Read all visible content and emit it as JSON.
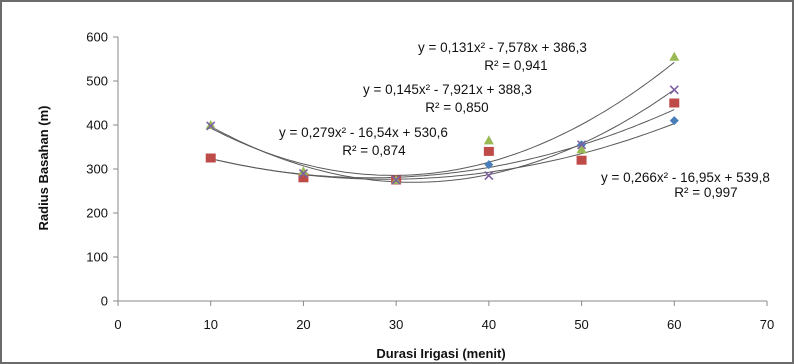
{
  "chart_data": {
    "type": "scatter",
    "title": "",
    "xlabel": "Durasi Irigasi (menit)",
    "ylabel": "Radius Basahan (m)",
    "xlim": [
      0,
      70
    ],
    "ylim": [
      0,
      600
    ],
    "x_ticks": [
      "0",
      "10",
      "20",
      "30",
      "40",
      "50",
      "60",
      "70"
    ],
    "y_ticks": [
      "0",
      "100",
      "200",
      "300",
      "400",
      "500",
      "600"
    ],
    "grid": false,
    "legend": "none",
    "series": [
      {
        "marker": "diamond",
        "color": "#4a7ebb",
        "x": [
          10,
          20,
          30,
          40,
          50,
          60
        ],
        "y": [
          325,
          290,
          275,
          310,
          355,
          410
        ],
        "trend": [
          0.266,
          -16.95,
          539.8
        ],
        "equation": "y = 0,266x² - 16,95x + 539,8",
        "r2": "R² = 0,997"
      },
      {
        "marker": "square",
        "color": "#be4b48",
        "x": [
          10,
          20,
          30,
          40,
          50,
          60
        ],
        "y": [
          325,
          280,
          275,
          340,
          320,
          450
        ],
        "trend": [
          0.279,
          -16.54,
          530.6
        ],
        "equation": "y = 0,279x² - 16,54x + 530,6",
        "r2": "R² = 0,874"
      },
      {
        "marker": "triangle",
        "color": "#98b954",
        "x": [
          10,
          20,
          30,
          40,
          50,
          60
        ],
        "y": [
          400,
          295,
          275,
          365,
          345,
          555
        ],
        "trend": [
          0.131,
          -7.578,
          386.3
        ],
        "equation": "y = 0,131x² - 7,578x + 386,3",
        "r2": "R² = 0,941"
      },
      {
        "marker": "x",
        "color": "#7d60a0",
        "x": [
          10,
          20,
          30,
          40,
          50,
          60
        ],
        "y": [
          398,
          290,
          275,
          285,
          355,
          480
        ],
        "trend": [
          0.145,
          -7.921,
          388.3
        ],
        "equation": "y = 0,145x² - 7,921x + 388,3",
        "r2": "R² = 0,850"
      }
    ]
  }
}
